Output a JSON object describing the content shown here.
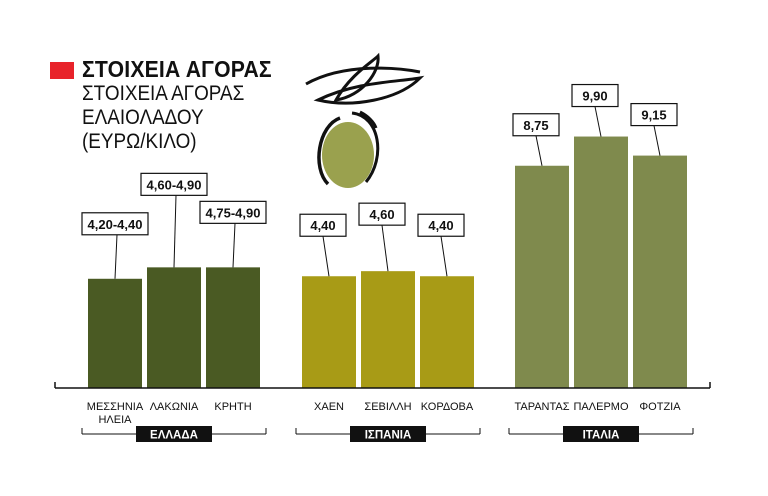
{
  "header": {
    "kicker": "ΣΤΟΙΧΕΙΑ ΑΓΟΡΑΣ",
    "subtitle_lines": [
      "ΣΤΟΙΧΕΙΑ ΑΓΟΡΑΣ",
      "ΕΛΑΙΟΛΑΔΟΥ",
      "(ΕΥΡΩ/ΚΙΛΟ)"
    ]
  },
  "colors": {
    "kicker_box": "#e8232a",
    "greece": "#4a5a23",
    "spain": "#a89b16",
    "italy": "#7f8a4d",
    "olive_body": "#9aa14e",
    "ink": "#111111"
  },
  "icons": [
    "olive-branch-icon"
  ],
  "chart_data": {
    "type": "bar",
    "title": "ΣΤΟΙΧΕΙΑ ΑΓΟΡΑΣ",
    "subtitle": "ΣΤΟΙΧΕΙΑ ΑΓΟΡΑΣ ΕΛΑΙΟΛΑΔΟΥ (ΕΥΡΩ/ΚΙΛΟ)",
    "xlabel": "",
    "ylabel": "",
    "ylim": [
      0,
      10
    ],
    "grid": false,
    "groups": [
      {
        "name": "ΕΛΛΑΔΑ",
        "color": "#4a5a23",
        "bars": [
          {
            "category": [
              "ΜΕΣΣΗΝΙΑ",
              "ΗΛΕΙΑ"
            ],
            "label": "4,20-4,40",
            "value": 4.3
          },
          {
            "category": [
              "ΛΑΚΩΝΙΑ"
            ],
            "label": "4,60-4,90",
            "value": 4.75
          },
          {
            "category": [
              "ΚΡΗΤΗ"
            ],
            "label": "4,75-4,90",
            "value": 4.75
          }
        ]
      },
      {
        "name": "ΙΣΠΑΝΙΑ",
        "color": "#a89b16",
        "bars": [
          {
            "category": [
              "ΧΑΕΝ"
            ],
            "label": "4,40",
            "value": 4.4
          },
          {
            "category": [
              "ΣΕΒΙΛΛΗ"
            ],
            "label": "4,60",
            "value": 4.6
          },
          {
            "category": [
              "ΚΟΡΔΟΒΑ"
            ],
            "label": "4,40",
            "value": 4.4
          }
        ]
      },
      {
        "name": "ΙΤΑΛΙΑ",
        "color": "#7f8a4d",
        "bars": [
          {
            "category": [
              "ΤΑΡΑΝΤΑΣ"
            ],
            "label": "8,75",
            "value": 8.75
          },
          {
            "category": [
              "ΠΑΛΕΡΜΟ"
            ],
            "label": "9,90",
            "value": 9.9
          },
          {
            "category": [
              "ΦΟΤΖΙΑ"
            ],
            "label": "9,15",
            "value": 9.15
          }
        ]
      }
    ]
  }
}
